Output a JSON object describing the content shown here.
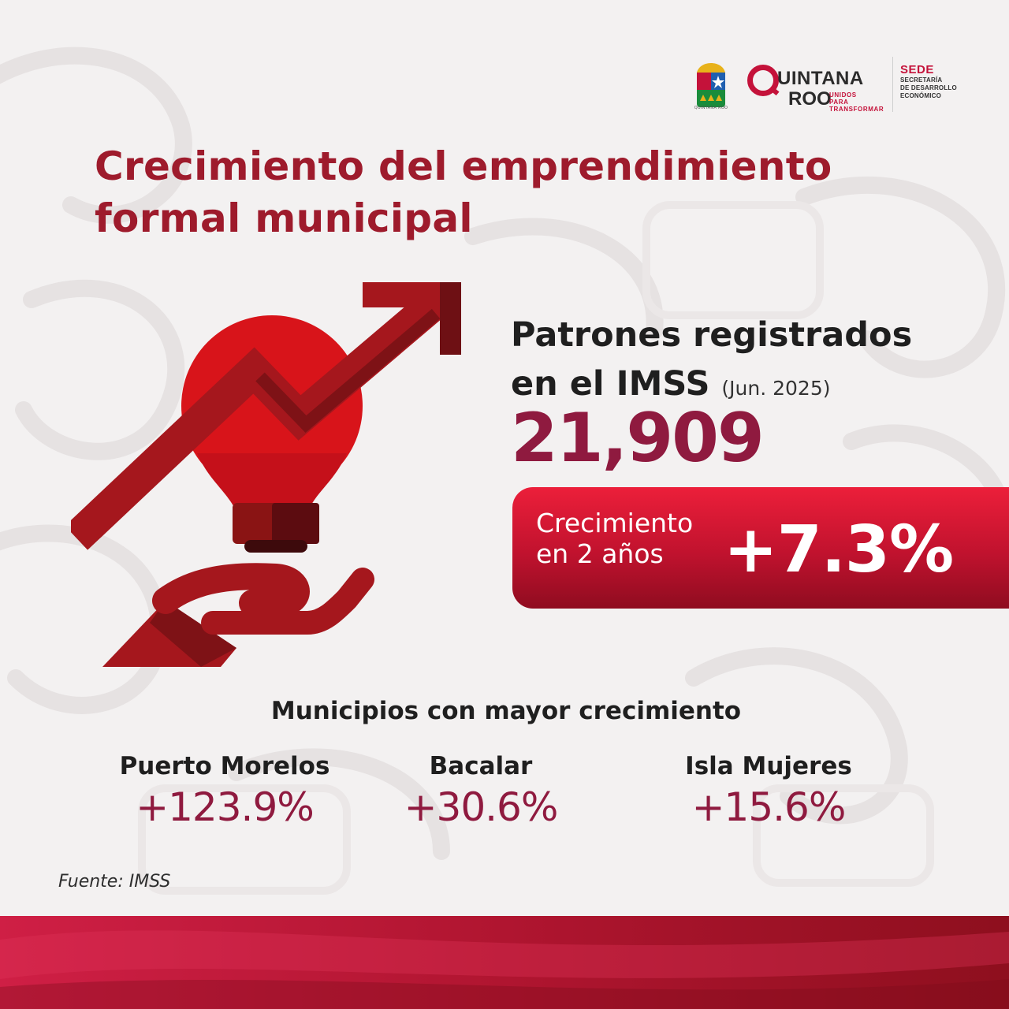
{
  "colors": {
    "title": "#9e1b2c",
    "value": "#8f1a3f",
    "badge_top": "#ec1f3a",
    "badge_bottom": "#8f0c20",
    "text_dark": "#1f1f1f",
    "background": "#f3f1f1"
  },
  "logos": {
    "emblem_caption": "QUINTANA ROO",
    "brand_word1": "UINTANA",
    "brand_word2": "ROO",
    "brand_tagline": [
      "UNIDOS PARA",
      "TRANSFORMAR"
    ],
    "sede_name": "SEDE",
    "sede_lines": [
      "SECRETARÍA",
      "DE DESARROLLO",
      "ECONÓMICO"
    ]
  },
  "title": {
    "line1": "Crecimiento del emprendimiento",
    "line2": "formal municipal"
  },
  "illustration": {
    "icon": "lightbulb-growth-arrow-hand-icon"
  },
  "kpi": {
    "label_line1": "Patrones registrados",
    "label_line2": "en el IMSS",
    "period": "(Jun. 2025)",
    "value": "21,909"
  },
  "growth": {
    "label_line1": "Crecimiento",
    "label_line2": "en 2 años",
    "value": "+7.3%"
  },
  "top_municipalities": {
    "title": "Municipios con mayor crecimiento",
    "items": [
      {
        "name": "Puerto Morelos",
        "value": "+123.9%"
      },
      {
        "name": "Bacalar",
        "value": "+30.6%"
      },
      {
        "name": "Isla Mujeres",
        "value": "+15.6%"
      }
    ]
  },
  "source": "Fuente: IMSS"
}
